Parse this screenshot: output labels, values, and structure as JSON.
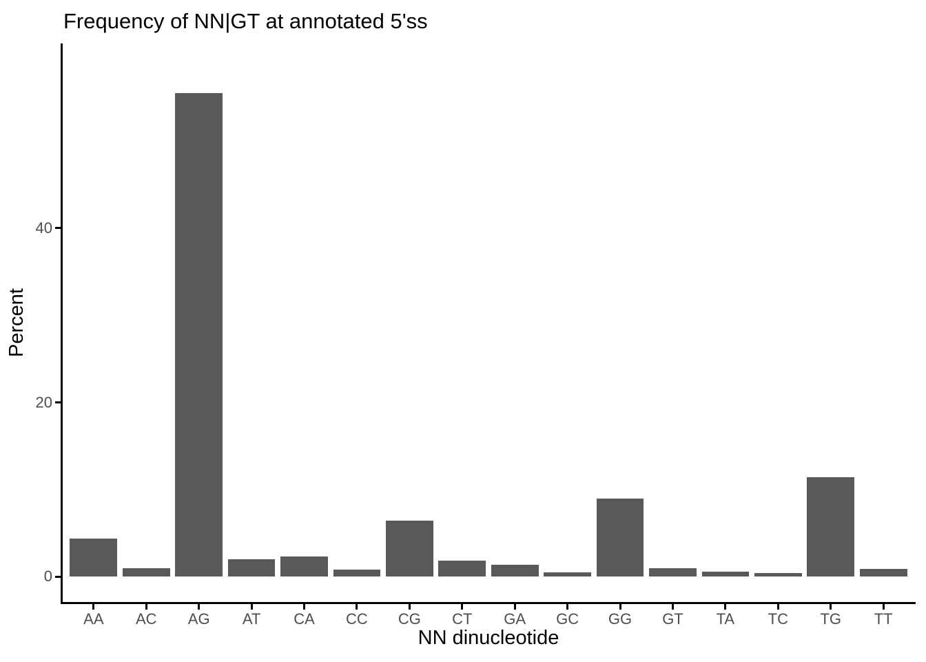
{
  "chart_data": {
    "type": "bar",
    "title": "Frequency of NN|GT at annotated 5'ss",
    "xlabel": "NN dinucleotide",
    "ylabel": "Percent",
    "categories": [
      "AA",
      "AC",
      "AG",
      "AT",
      "CA",
      "CC",
      "CG",
      "CT",
      "GA",
      "GC",
      "GG",
      "GT",
      "TA",
      "TC",
      "TG",
      "TT"
    ],
    "values": [
      4.4,
      1.0,
      55.5,
      2.0,
      2.3,
      0.8,
      6.4,
      1.8,
      1.4,
      0.5,
      9.0,
      1.0,
      0.6,
      0.4,
      11.4,
      0.9
    ],
    "y_ticks": [
      0,
      20,
      40
    ],
    "ylim": [
      0,
      58.3
    ],
    "grid": false,
    "legend_position": "none",
    "bar_color": "#595959",
    "axis_line_color": "#000000",
    "tick_label_color": "#4D4D4D",
    "title_color": "#000000",
    "background_color": "#FFFFFF"
  }
}
